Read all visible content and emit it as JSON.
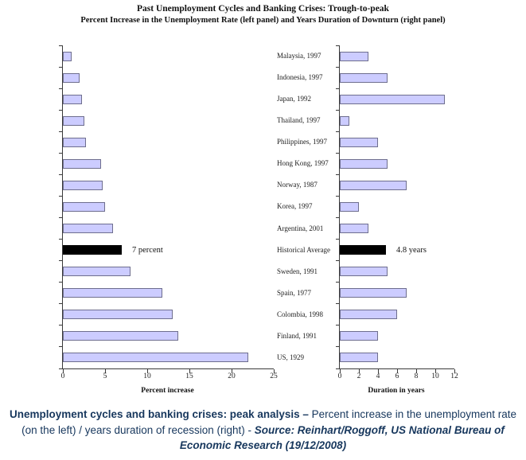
{
  "title": {
    "line1": "Past Unemployment Cycles and Banking Crises: Trough-to-peak",
    "line2": "Percent Increase in the Unemployment Rate (left panel) and Years Duration of Downturn (right panel)"
  },
  "chart_data": {
    "type": "bar",
    "orientation": "horizontal",
    "grid": false,
    "legend": false,
    "categories": [
      "Malaysia, 1997",
      "Indonesia, 1997",
      "Japan, 1992",
      "Thailand, 1997",
      "Philippines, 1997",
      "Hong Kong, 1997",
      "Norway, 1987",
      "Korea, 1997",
      "Argentina, 2001",
      "Historical Average",
      "Sweden, 1991",
      "Spain, 1977",
      "Colombia, 1998",
      "Finland, 1991",
      "US, 1929"
    ],
    "series": [
      {
        "name": "Percent increase in the unemployment rate",
        "values": [
          1,
          2,
          2.3,
          2.5,
          2.7,
          4.5,
          4.7,
          5,
          5.9,
          7,
          8,
          11.8,
          13,
          13.7,
          22
        ]
      },
      {
        "name": "Years duration of downturn",
        "values": [
          3,
          5,
          11,
          1,
          4,
          5,
          7,
          2,
          3,
          4.8,
          5,
          7,
          6,
          4,
          4
        ]
      }
    ],
    "highlight_index": 9,
    "highlight_color": "#000000",
    "bar_color": "#ccccff",
    "bar_border_color": "#6e6e8e",
    "panels": [
      {
        "xlabel": "Percent increase",
        "xmax": 25,
        "tick_values": [
          0,
          5,
          10,
          15,
          20,
          25
        ],
        "annotation": "7 percent",
        "annotation_value": 7
      },
      {
        "xlabel": "Duration in years",
        "xmax": 12,
        "tick_values": [
          0,
          2,
          4,
          6,
          8,
          10,
          12
        ],
        "annotation": "4.8 years",
        "annotation_value": 4.8
      }
    ]
  },
  "caption": {
    "bold_lead": "Unemployment cycles and banking crises: peak analysis – ",
    "plain": "Percent increase in the unemployment rate (on the left) / years duration of recession (right) - ",
    "source": "Source: Reinhart/Roggoff, US National Bureau of Economic Research (19/12/2008)",
    "color": "#17375d"
  }
}
